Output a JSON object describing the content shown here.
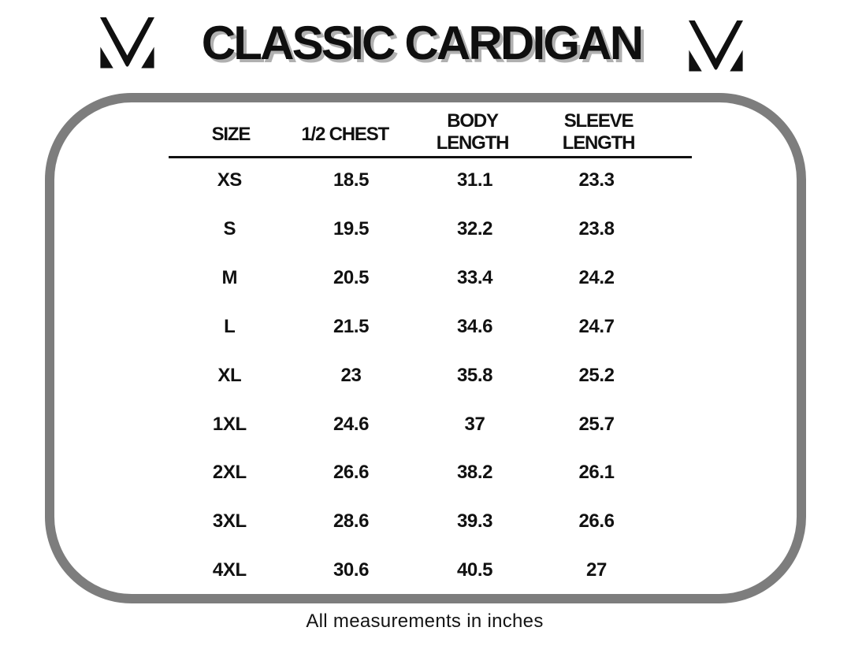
{
  "title": "CLASSIC CARDIGAN",
  "logos": {
    "left": "brand-m-monogram",
    "right": "brand-m-monogram"
  },
  "footnote": "All measurements in inches",
  "colors": {
    "text": "#111111",
    "title_shadow": "#b0b0b0",
    "panel_border_gray": "#7d7d7d",
    "background": "#ffffff"
  },
  "chart_data": {
    "type": "table",
    "title": "CLASSIC CARDIGAN",
    "note": "All measurements in inches",
    "units": "inches",
    "columns": [
      "SIZE",
      "1/2 CHEST",
      "BODY LENGTH",
      "SLEEVE LENGTH"
    ],
    "column_lines": [
      [
        "SIZE"
      ],
      [
        "1/2 CHEST"
      ],
      [
        "BODY",
        "LENGTH"
      ],
      [
        "SLEEVE",
        "LENGTH"
      ]
    ],
    "rows": [
      {
        "size": "XS",
        "half_chest": "18.5",
        "body_length": "31.1",
        "sleeve_length": "23.3"
      },
      {
        "size": "S",
        "half_chest": "19.5",
        "body_length": "32.2",
        "sleeve_length": "23.8"
      },
      {
        "size": "M",
        "half_chest": "20.5",
        "body_length": "33.4",
        "sleeve_length": "24.2"
      },
      {
        "size": "L",
        "half_chest": "21.5",
        "body_length": "34.6",
        "sleeve_length": "24.7"
      },
      {
        "size": "XL",
        "half_chest": "23",
        "body_length": "35.8",
        "sleeve_length": "25.2"
      },
      {
        "size": "1XL",
        "half_chest": "24.6",
        "body_length": "37",
        "sleeve_length": "25.7"
      },
      {
        "size": "2XL",
        "half_chest": "26.6",
        "body_length": "38.2",
        "sleeve_length": "26.1"
      },
      {
        "size": "3XL",
        "half_chest": "28.6",
        "body_length": "39.3",
        "sleeve_length": "26.6"
      },
      {
        "size": "4XL",
        "half_chest": "30.6",
        "body_length": "40.5",
        "sleeve_length": "27"
      }
    ]
  }
}
